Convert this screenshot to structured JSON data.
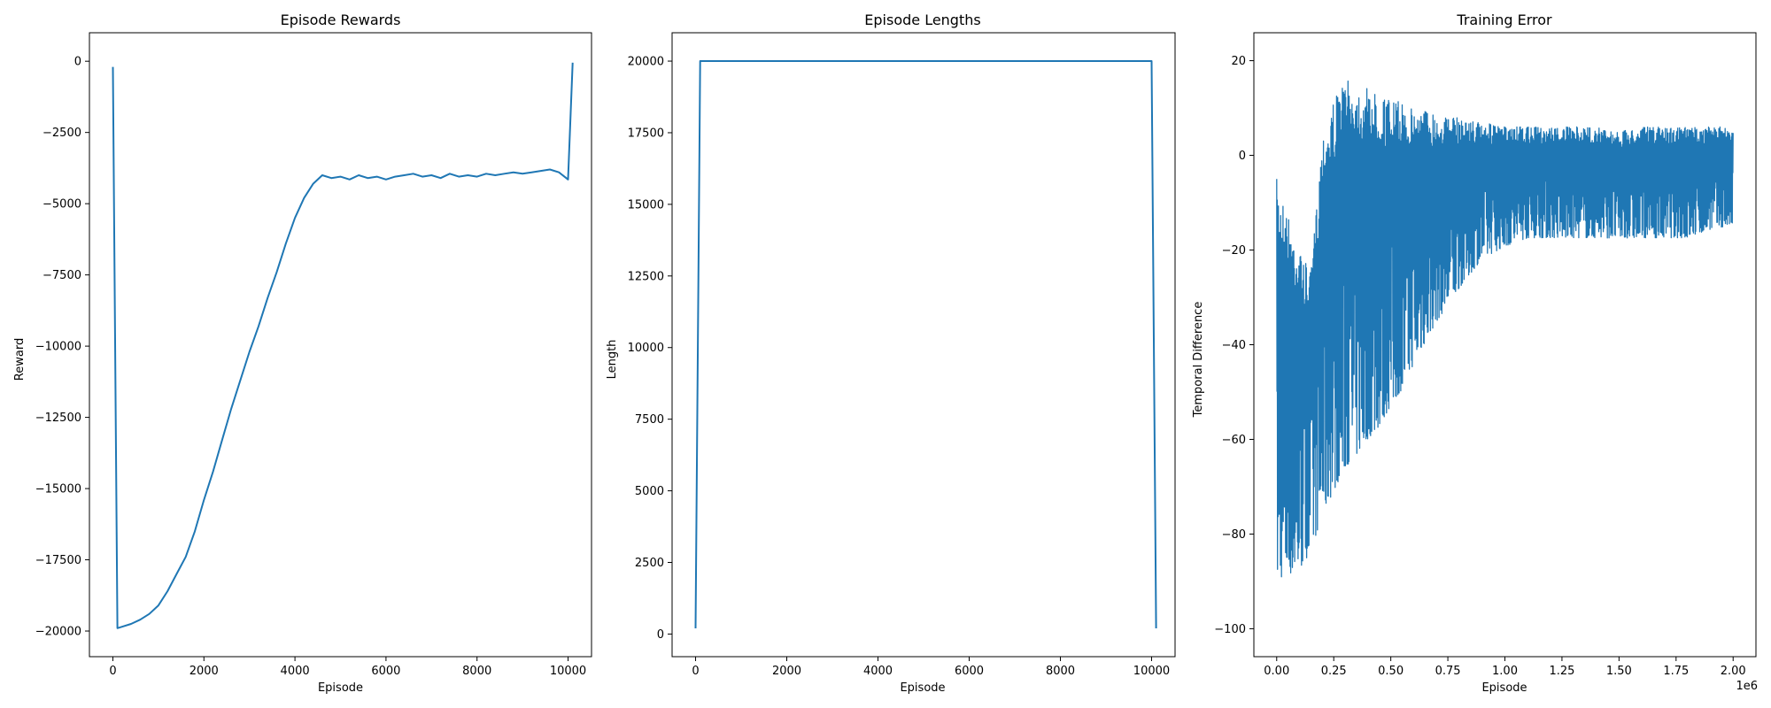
{
  "chart_data": [
    {
      "type": "line",
      "title": "Episode Rewards",
      "xlabel": "Episode",
      "ylabel": "Reward",
      "xlim": [
        -515,
        10515
      ],
      "ylim": [
        -20900,
        1000
      ],
      "xticks": [
        0,
        2000,
        4000,
        6000,
        8000,
        10000
      ],
      "xtick_labels": [
        "0",
        "2000",
        "4000",
        "6000",
        "8000",
        "10000"
      ],
      "yticks": [
        0,
        -2500,
        -5000,
        -7500,
        -10000,
        -12500,
        -15000,
        -17500,
        -20000
      ],
      "ytick_labels": [
        "0",
        "−2500",
        "−5000",
        "−7500",
        "−10000",
        "−12500",
        "−15000",
        "−17500",
        "−20000"
      ],
      "series": [
        {
          "x": [
            0,
            100,
            200,
            400,
            600,
            800,
            1000,
            1200,
            1400,
            1600,
            1800,
            2000,
            2200,
            2400,
            2600,
            2800,
            3000,
            3200,
            3400,
            3600,
            3800,
            4000,
            4200,
            4400,
            4600,
            4800,
            5000,
            5200,
            5400,
            5600,
            5800,
            6000,
            6200,
            6400,
            6600,
            6800,
            7000,
            7200,
            7400,
            7600,
            7800,
            8000,
            8200,
            8400,
            8600,
            8800,
            9000,
            9200,
            9400,
            9600,
            9800,
            10000,
            10100
          ],
          "y": [
            -200,
            -19900,
            -19850,
            -19750,
            -19600,
            -19400,
            -19100,
            -18600,
            -18000,
            -17400,
            -16500,
            -15400,
            -14400,
            -13300,
            -12200,
            -11200,
            -10200,
            -9300,
            -8300,
            -7400,
            -6400,
            -5500,
            -4800,
            -4300,
            -4000,
            -4100,
            -4050,
            -4150,
            -4000,
            -4100,
            -4050,
            -4150,
            -4050,
            -4000,
            -3950,
            -4050,
            -4000,
            -4100,
            -3950,
            -4050,
            -4000,
            -4050,
            -3950,
            -4000,
            -3950,
            -3900,
            -3950,
            -3900,
            -3850,
            -3800,
            -3900,
            -4150,
            -50
          ]
        }
      ]
    },
    {
      "type": "line",
      "title": "Episode Lengths",
      "xlabel": "Episode",
      "ylabel": "Length",
      "xlim": [
        -515,
        10515
      ],
      "ylim": [
        -790,
        20990
      ],
      "xticks": [
        0,
        2000,
        4000,
        6000,
        8000,
        10000
      ],
      "xtick_labels": [
        "0",
        "2000",
        "4000",
        "6000",
        "8000",
        "10000"
      ],
      "yticks": [
        0,
        2500,
        5000,
        7500,
        10000,
        12500,
        15000,
        17500,
        20000
      ],
      "ytick_labels": [
        "0",
        "2500",
        "5000",
        "7500",
        "10000",
        "12500",
        "15000",
        "17500",
        "20000"
      ],
      "series": [
        {
          "x": [
            0,
            100,
            10000,
            10100
          ],
          "y": [
            200,
            20000,
            20000,
            200
          ]
        }
      ]
    },
    {
      "type": "line",
      "title": "Training Error",
      "xlabel": "Episode",
      "ylabel": "Temporal Difference",
      "x_multiplier_label": "1e6",
      "xlim": [
        -0.1,
        2.1
      ],
      "ylim": [
        -105.9,
        25.9
      ],
      "xticks": [
        0.0,
        0.25,
        0.5,
        0.75,
        1.0,
        1.25,
        1.5,
        1.75,
        2.0
      ],
      "xtick_labels": [
        "0.00",
        "0.25",
        "0.50",
        "0.75",
        "1.00",
        "1.25",
        "1.50",
        "1.75",
        "2.00"
      ],
      "yticks": [
        20,
        0,
        -20,
        -40,
        -60,
        -80,
        -100
      ],
      "ytick_labels": [
        "20",
        "0",
        "−20",
        "−40",
        "−60",
        "−80",
        "−100"
      ],
      "series": [
        {
          "x": [
            0.0,
            0.1,
            0.15,
            0.2,
            0.25,
            0.3,
            0.35,
            0.4,
            0.45,
            0.5,
            0.55,
            0.6,
            0.65,
            0.7,
            0.75,
            0.8,
            0.9,
            1.0,
            1.1,
            1.2,
            1.3,
            1.4,
            1.5,
            1.6,
            1.7,
            1.8,
            1.9,
            2.0
          ],
          "y_upper": [
            -5,
            -20,
            -25,
            5,
            12,
            16,
            15,
            14,
            13,
            12,
            11,
            10,
            10,
            9,
            8,
            8,
            7,
            6,
            6,
            6,
            6,
            6,
            5,
            6,
            6,
            6,
            6,
            6
          ],
          "y_lower": [
            -99,
            -95,
            -90,
            -85,
            -80,
            -75,
            -72,
            -68,
            -65,
            -60,
            -56,
            -50,
            -45,
            -40,
            -36,
            -32,
            -25,
            -22,
            -20,
            -20,
            -20,
            -20,
            -20,
            -20,
            -20,
            -20,
            -18,
            -17
          ]
        }
      ]
    }
  ]
}
